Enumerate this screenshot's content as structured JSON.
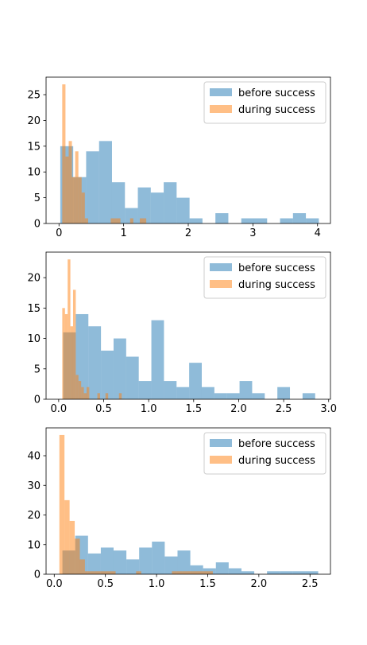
{
  "colors": {
    "before": "#1f77b4",
    "during": "#ff7f0e",
    "bar_alpha": 0.5,
    "axis": "#000000"
  },
  "chart_data": [
    {
      "type": "histogram",
      "xlim": [
        -0.2,
        4.2
      ],
      "ylim": [
        0,
        28.4
      ],
      "xticks": [
        0,
        1,
        2,
        3,
        4
      ],
      "xtick_labels": [
        "0",
        "1",
        "2",
        "3",
        "4"
      ],
      "yticks": [
        0,
        5,
        10,
        15,
        20,
        25
      ],
      "ytick_labels": [
        "0",
        "5",
        "10",
        "15",
        "20",
        "25"
      ],
      "legend": {
        "location": "upper right",
        "entries": [
          "before success",
          "during success"
        ]
      },
      "series": [
        {
          "name": "before success",
          "edges": [
            0.02,
            0.22,
            0.42,
            0.62,
            0.82,
            1.02,
            1.22,
            1.42,
            1.62,
            1.82,
            2.02,
            2.22,
            2.42,
            2.62,
            2.82,
            3.02,
            3.22,
            3.42,
            3.62,
            3.82,
            4.02
          ],
          "counts": [
            15,
            9,
            14,
            16,
            8,
            3,
            7,
            6,
            8,
            5,
            1,
            0,
            2,
            0,
            1,
            1,
            0,
            1,
            2,
            1
          ]
        },
        {
          "name": "during success",
          "edges": [
            0.05,
            0.1,
            0.15,
            0.2,
            0.25,
            0.3,
            0.35,
            0.4,
            0.45,
            0.5,
            0.55,
            0.6,
            0.65,
            0.7,
            0.75,
            0.8,
            0.85,
            0.9,
            0.95,
            1.0,
            1.05,
            1.1,
            1.15,
            1.2,
            1.25,
            1.3,
            1.35
          ],
          "counts": [
            27,
            13,
            16,
            9,
            14,
            9,
            6,
            1,
            0,
            0,
            0,
            0,
            0,
            0,
            0,
            1,
            1,
            1,
            0,
            0,
            0,
            1,
            0,
            0,
            1,
            1
          ]
        }
      ]
    },
    {
      "type": "histogram",
      "xlim": [
        -0.14,
        3.02
      ],
      "ylim": [
        0,
        24.2
      ],
      "xticks": [
        0.0,
        0.5,
        1.0,
        1.5,
        2.0,
        2.5,
        3.0
      ],
      "xtick_labels": [
        "0.0",
        "0.5",
        "1.0",
        "1.5",
        "2.0",
        "2.5",
        "3.0"
      ],
      "yticks": [
        0,
        5,
        10,
        15,
        20
      ],
      "ytick_labels": [
        "0",
        "5",
        "10",
        "15",
        "20"
      ],
      "legend": {
        "location": "upper right",
        "entries": [
          "before success",
          "during success"
        ]
      },
      "series": [
        {
          "name": "before success",
          "edges": [
            0.05,
            0.19,
            0.33,
            0.47,
            0.61,
            0.75,
            0.89,
            1.03,
            1.17,
            1.31,
            1.45,
            1.59,
            1.73,
            1.87,
            2.01,
            2.15,
            2.29,
            2.43,
            2.57,
            2.71,
            2.85
          ],
          "counts": [
            11,
            14,
            12,
            8,
            10,
            7,
            3,
            13,
            3,
            2,
            6,
            2,
            1,
            1,
            3,
            1,
            0,
            2,
            0,
            1
          ]
        },
        {
          "name": "during success",
          "edges": [
            0.04,
            0.07,
            0.1,
            0.13,
            0.16,
            0.19,
            0.22,
            0.25,
            0.28,
            0.31,
            0.34,
            0.37,
            0.4,
            0.43,
            0.46,
            0.49,
            0.52,
            0.55,
            0.58,
            0.61,
            0.64,
            0.67,
            0.7
          ],
          "counts": [
            15,
            14,
            23,
            12,
            18,
            4,
            3,
            2,
            1,
            2,
            0,
            0,
            0,
            1,
            0,
            0,
            1,
            0,
            0,
            0,
            0,
            1
          ]
        }
      ]
    },
    {
      "type": "histogram",
      "xlim": [
        -0.08,
        2.7
      ],
      "ylim": [
        0,
        49.4
      ],
      "xticks": [
        0.0,
        0.5,
        1.0,
        1.5,
        2.0,
        2.5
      ],
      "xtick_labels": [
        "0.0",
        "0.5",
        "1.0",
        "1.5",
        "2.0",
        "2.5"
      ],
      "yticks": [
        0,
        10,
        20,
        30,
        40
      ],
      "ytick_labels": [
        "0",
        "10",
        "20",
        "30",
        "40"
      ],
      "legend": {
        "location": "upper right",
        "entries": [
          "before success",
          "during success"
        ]
      },
      "series": [
        {
          "name": "before success",
          "edges": [
            0.08,
            0.205,
            0.33,
            0.455,
            0.58,
            0.705,
            0.83,
            0.955,
            1.08,
            1.205,
            1.33,
            1.455,
            1.58,
            1.705,
            1.83,
            1.955,
            2.08,
            2.205,
            2.33,
            2.455,
            2.58
          ],
          "counts": [
            8,
            13,
            7,
            9,
            8,
            5,
            9,
            11,
            6,
            8,
            3,
            2,
            4,
            2,
            1,
            0,
            1,
            1,
            1,
            1
          ]
        },
        {
          "name": "during success",
          "edges": [
            0.05,
            0.1,
            0.15,
            0.2,
            0.25,
            0.3,
            0.35,
            0.4,
            0.45,
            0.5,
            0.55,
            0.6,
            0.65,
            0.7,
            0.75,
            0.8,
            0.85,
            0.9,
            0.95,
            1.0,
            1.05,
            1.1,
            1.15,
            1.2,
            1.25,
            1.3,
            1.35,
            1.4,
            1.45,
            1.5,
            1.55
          ],
          "counts": [
            47,
            25,
            18,
            12,
            5,
            1,
            1,
            1,
            1,
            1,
            1,
            0,
            0,
            0,
            0,
            1,
            0,
            0,
            0,
            0,
            0,
            0,
            1,
            1,
            1,
            1,
            1,
            1,
            1,
            1
          ]
        }
      ]
    }
  ]
}
